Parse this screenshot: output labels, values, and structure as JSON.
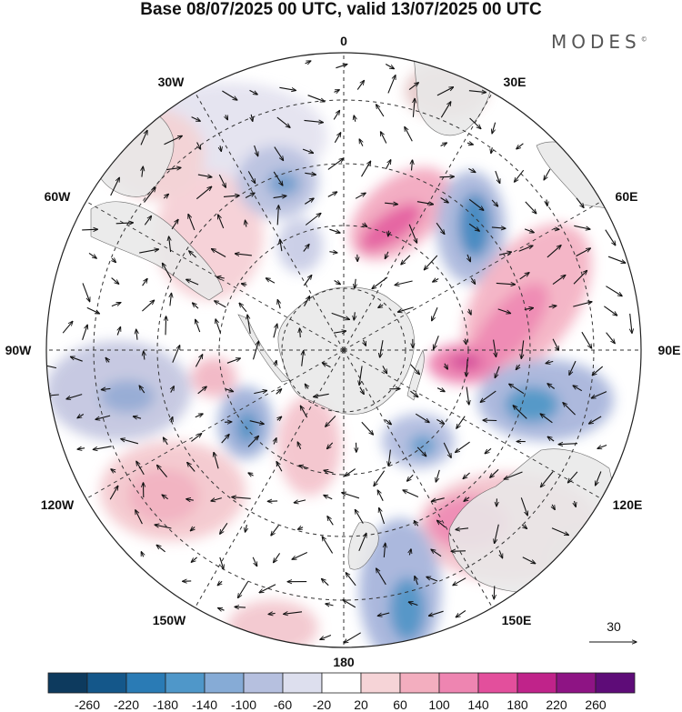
{
  "title": "Base 08/07/2025 00 UTC, valid 13/07/2025 00 UTC",
  "brand": "MODES",
  "brand_mark": "©",
  "map": {
    "projection": "south-polar-stereographic",
    "center": "South Pole",
    "longitude_labels": [
      {
        "id": "lon-0",
        "text": "0"
      },
      {
        "id": "lon-30e",
        "text": "30E"
      },
      {
        "id": "lon-60e",
        "text": "60E"
      },
      {
        "id": "lon-90e",
        "text": "90E"
      },
      {
        "id": "lon-120e",
        "text": "120E"
      },
      {
        "id": "lon-150e",
        "text": "150E"
      },
      {
        "id": "lon-180",
        "text": "180"
      },
      {
        "id": "lon-150w",
        "text": "150W"
      },
      {
        "id": "lon-120w",
        "text": "120W"
      },
      {
        "id": "lon-90w",
        "text": "90W"
      },
      {
        "id": "lon-60w",
        "text": "60W"
      },
      {
        "id": "lon-30w",
        "text": "30W"
      }
    ],
    "reference_vector": "30",
    "land_color": "#eeeeee"
  },
  "colorbar": {
    "levels": [
      "-260",
      "-220",
      "-180",
      "-140",
      "-100",
      "-60",
      "-20",
      "20",
      "60",
      "100",
      "140",
      "180",
      "220",
      "260"
    ],
    "colors": [
      "#0d3a5e",
      "#14578a",
      "#2a7bb5",
      "#4f97c9",
      "#86abd6",
      "#b6c0df",
      "#dddfee",
      "#ffffff",
      "#f6d4d7",
      "#f3aebf",
      "#ee85b1",
      "#e34f9c",
      "#c0238a",
      "#8e1484",
      "#5e0c78"
    ]
  }
}
